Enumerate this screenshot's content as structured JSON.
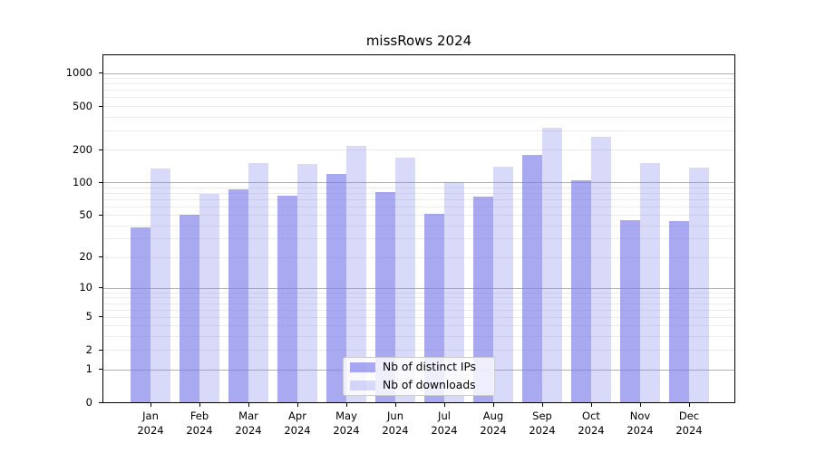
{
  "title": "missRows 2024",
  "legend": {
    "items": [
      "Nb of distinct IPs",
      "Nb of downloads"
    ]
  },
  "chart_data": {
    "type": "bar",
    "title": "missRows 2024",
    "categories": [
      "Jan 2024",
      "Feb 2024",
      "Mar 2024",
      "Apr 2024",
      "May 2024",
      "Jun 2024",
      "Jul 2024",
      "Aug 2024",
      "Sep 2024",
      "Oct 2024",
      "Nov 2024",
      "Dec 2024"
    ],
    "x_tick_months": [
      "Jan",
      "Feb",
      "Mar",
      "Apr",
      "May",
      "Jun",
      "Jul",
      "Aug",
      "Sep",
      "Oct",
      "Nov",
      "Dec"
    ],
    "x_tick_year": "2024",
    "series": [
      {
        "name": "Nb of distinct IPs",
        "color": "rgba(123,123,233,0.65)",
        "values": [
          38,
          50,
          86,
          76,
          120,
          81,
          51,
          74,
          178,
          105,
          45,
          44
        ]
      },
      {
        "name": "Nb of downloads",
        "color": "rgba(123,123,233,0.29)",
        "values": [
          134,
          78,
          151,
          148,
          215,
          170,
          101,
          140,
          316,
          260,
          150,
          138
        ]
      }
    ],
    "y_scale": "log10(value+1)",
    "y_ticks": [
      0,
      1,
      2,
      5,
      10,
      20,
      50,
      100,
      200,
      500,
      1000
    ],
    "ylim_top": 1454,
    "grid": true,
    "grid_major_color": "#b0b0b0",
    "grid_minor_color": "#ebebeb",
    "legend_position": "bottom-center",
    "xlabel": "",
    "ylabel": ""
  }
}
